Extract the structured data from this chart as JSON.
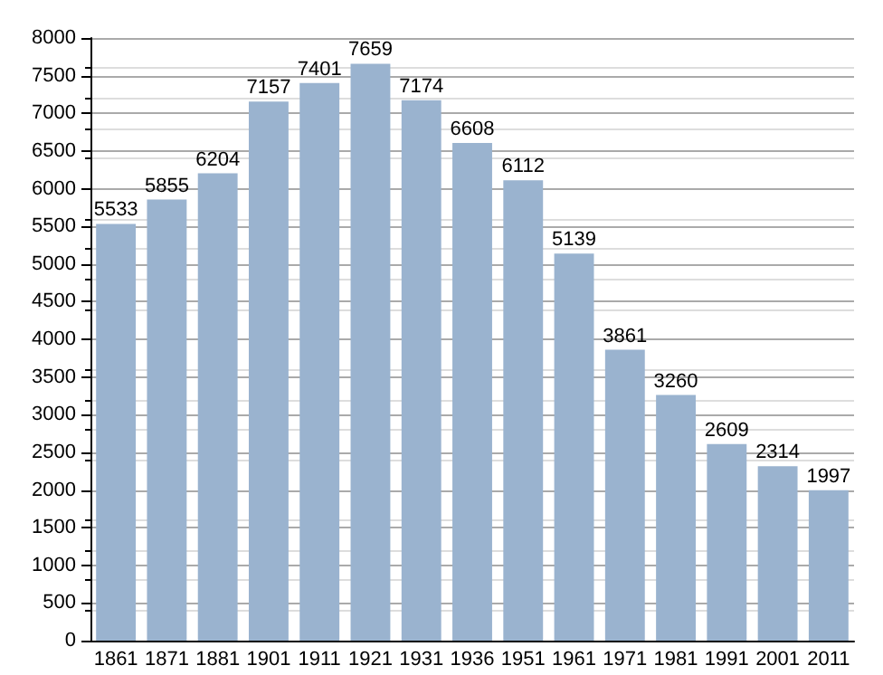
{
  "chart_data": {
    "type": "bar",
    "categories": [
      "1861",
      "1871",
      "1881",
      "1901",
      "1911",
      "1921",
      "1931",
      "1936",
      "1951",
      "1961",
      "1971",
      "1981",
      "1991",
      "2001",
      "2011"
    ],
    "values": [
      5533,
      5855,
      6204,
      7157,
      7401,
      7659,
      7174,
      6608,
      6112,
      5139,
      3861,
      3260,
      2609,
      2314,
      1997
    ],
    "color": "#9ab3cf",
    "ylim": [
      0,
      8000
    ],
    "yticks": [
      0,
      500,
      1000,
      1500,
      2000,
      2500,
      3000,
      3500,
      4000,
      4500,
      5000,
      5500,
      6000,
      6500,
      7000,
      7500,
      8000
    ],
    "grid": "y",
    "data_labels": true
  }
}
